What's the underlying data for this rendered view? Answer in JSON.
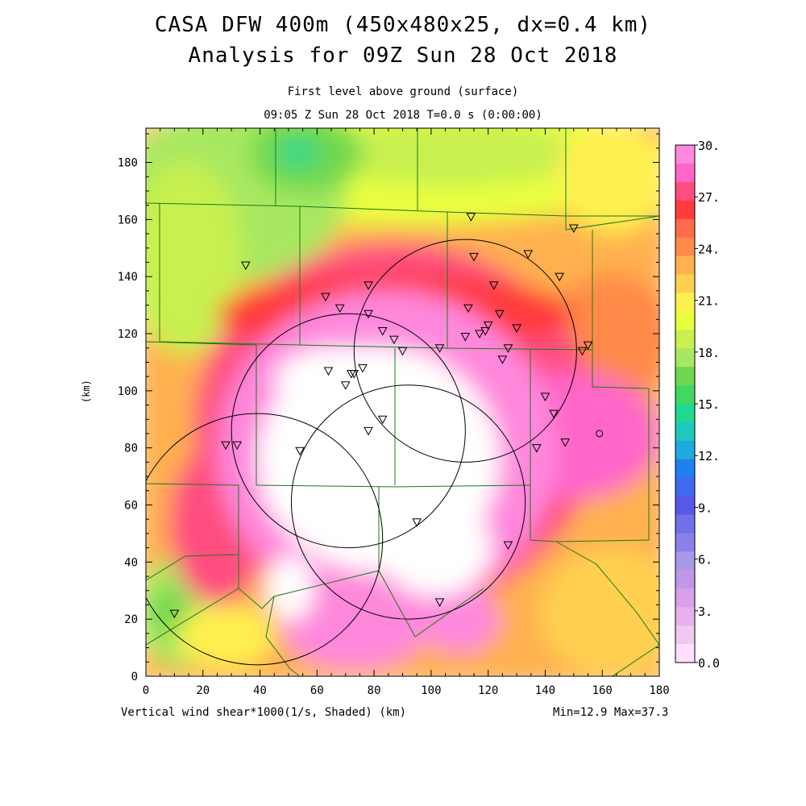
{
  "header": {
    "title_line1": "CASA DFW 400m (450x480x25, dx=0.4 km)",
    "title_line2": "Analysis for 09Z Sun 28 Oct 2018",
    "subtitle_line1": "First level above ground (surface)",
    "subtitle_line2": "09:05 Z Sun 28 Oct 2018    T=0.0 s (0:00:00)"
  },
  "axes": {
    "x_label": "(km)",
    "y_label": "(km)",
    "x_ticks": [
      "0",
      "20",
      "40",
      "60",
      "80",
      "100",
      "120",
      "140",
      "160",
      "180"
    ],
    "y_ticks": [
      "0",
      "20",
      "40",
      "60",
      "80",
      "100",
      "120",
      "140",
      "160",
      "180"
    ],
    "xlim": [
      0,
      180
    ],
    "ylim": [
      0,
      192
    ]
  },
  "footer": {
    "field_label": "Vertical wind shear*1000(1/s, Shaded)",
    "field_units": "(km)",
    "min_max": "Min=12.9 Max=37.3"
  },
  "colorbar": {
    "labels": [
      "30.",
      "27.",
      "24.",
      "21.",
      "18.",
      "15.",
      "12.",
      "9.",
      "6.",
      "3.",
      "0.0"
    ],
    "colors": [
      "#ff88dd",
      "#ff66c8",
      "#ff4d80",
      "#ff3b3b",
      "#ff6a4a",
      "#ff8a4a",
      "#ffb050",
      "#ffd050",
      "#fff050",
      "#e8ff40",
      "#c8f050",
      "#a8e860",
      "#70d850",
      "#40d860",
      "#20d890",
      "#20c8c0",
      "#20a8e0",
      "#2080f0",
      "#4068f0",
      "#5858e8",
      "#7070e8",
      "#8c80e8",
      "#a898e8",
      "#c098e8",
      "#d8a0e8",
      "#e8b0ec",
      "#f0c8f0",
      "#ffe0ff"
    ]
  },
  "chart_data": {
    "type": "heatmap",
    "variable": "Vertical wind shear*1000(1/s, Shaded)",
    "value_range": [
      12.9,
      37.3
    ],
    "colorbar_range": [
      0,
      30
    ],
    "radar_circles_center_km": [
      [
        71,
        86
      ],
      [
        112,
        114
      ],
      [
        92,
        61
      ],
      [
        39,
        48
      ]
    ],
    "radar_circles_radius_km": [
      41,
      39,
      41,
      44
    ],
    "triangle_markers_km": [
      [
        35,
        144
      ],
      [
        63,
        133
      ],
      [
        68,
        129
      ],
      [
        78,
        137
      ],
      [
        78,
        127
      ],
      [
        83,
        121
      ],
      [
        87,
        118
      ],
      [
        90,
        114
      ],
      [
        103,
        115
      ],
      [
        112,
        119
      ],
      [
        113,
        129
      ],
      [
        115,
        147
      ],
      [
        114,
        161
      ],
      [
        122,
        137
      ],
      [
        124,
        127
      ],
      [
        120,
        123
      ],
      [
        119,
        121
      ],
      [
        117,
        120
      ],
      [
        127,
        115
      ],
      [
        130,
        122
      ],
      [
        134,
        148
      ],
      [
        137,
        80
      ],
      [
        143,
        92
      ],
      [
        140,
        98
      ],
      [
        145,
        140
      ],
      [
        147,
        82
      ],
      [
        150,
        157
      ],
      [
        155,
        116
      ],
      [
        153,
        114
      ],
      [
        125,
        111
      ],
      [
        64,
        107
      ],
      [
        70,
        102
      ],
      [
        72,
        106
      ],
      [
        73,
        106
      ],
      [
        76,
        108
      ],
      [
        83,
        90
      ],
      [
        78,
        86
      ],
      [
        54,
        79
      ],
      [
        28,
        81
      ],
      [
        32,
        81
      ],
      [
        95,
        54
      ],
      [
        127,
        46
      ],
      [
        103,
        26
      ],
      [
        10,
        22
      ]
    ],
    "circle_marker_km": [
      159,
      85
    ]
  }
}
